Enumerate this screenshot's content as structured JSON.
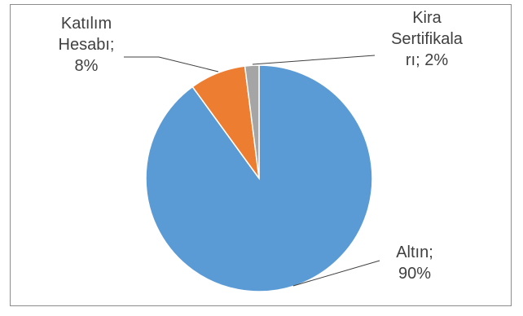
{
  "chart_data": {
    "type": "pie",
    "title": "",
    "slices": [
      {
        "category": "Altın",
        "value": 90,
        "value_label": "90%",
        "label_lines": [
          "Altın;",
          "90%"
        ],
        "color": "#5b9bd5"
      },
      {
        "category": "Katılım Hesabı",
        "value": 8,
        "value_label": "8%",
        "label_lines": [
          "Katılım",
          "Hesabı;",
          "8%"
        ],
        "color": "#ed7d31"
      },
      {
        "category": "Kira Sertifikaları",
        "value": 2,
        "value_label": "2%",
        "label_lines": [
          "Kira",
          "Sertifikala",
          "rı; 2%"
        ],
        "color": "#a5a5a5"
      }
    ],
    "legend": "none",
    "start_angle_deg": 0,
    "direction": "clockwise"
  }
}
